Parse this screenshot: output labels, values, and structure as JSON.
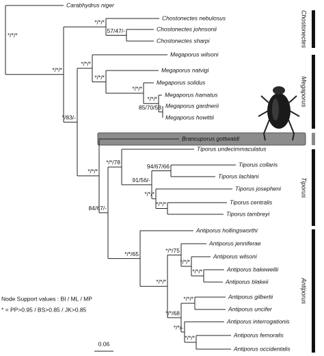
{
  "taxa": [
    "Carabhydrus niger",
    "Chostonectes nebulosus",
    "Chostonectes johnsonii",
    "Chostonectes sharpi",
    "Megaporus wilsoni",
    "Megaporus natvigi",
    "Megaporus solidus",
    "Megaporus hamatus",
    "Megaporus gardnerii",
    "Megaporus howittii",
    "Brancuporus gottwaldi",
    "Tiporus undecimmaculatus",
    "Tiporus collaris",
    "Tiporus lachlani",
    "Tiporus josepheni",
    "Tiporus centralis",
    "Tiporus tambreyi",
    "Antiporus hollingsworthi",
    "Antiporus jenniferae",
    "Antiporus wilsoni",
    "Antiporus bakewellii",
    "Antiporus blakeii",
    "Antiporus gilbertii",
    "Antiporus uncifer",
    "Antiporus interrogationis",
    "Antiporus femoralis",
    "Antiporus occidentalis"
  ],
  "support": [
    "*/*/*",
    "*/*/*",
    "*/*/*",
    "57/47/-",
    "*/83/-",
    "*/*/*",
    "*/*/*",
    "*/*/*",
    "*/*/*",
    "85/70/58",
    "*/*/*",
    "84/67/-",
    "*/*/78",
    "94/67/66",
    "91/56/-",
    "*/*/*",
    "*/*/*",
    "*/*/65",
    "*/*/75",
    "*/*/*",
    "*/*/*",
    "*/*/*",
    "*/*/*",
    "*/*/68",
    "*/*/*",
    "*/*/-"
  ],
  "clades": [
    "Chostonectes",
    "Megaporus",
    "Tiporus",
    "Antiporus"
  ],
  "legend": [
    "Node Support values : BI / ML / MP",
    "* = PP>0.95 / BS>0.85 / JK>0.85"
  ],
  "scale": "0.06"
}
